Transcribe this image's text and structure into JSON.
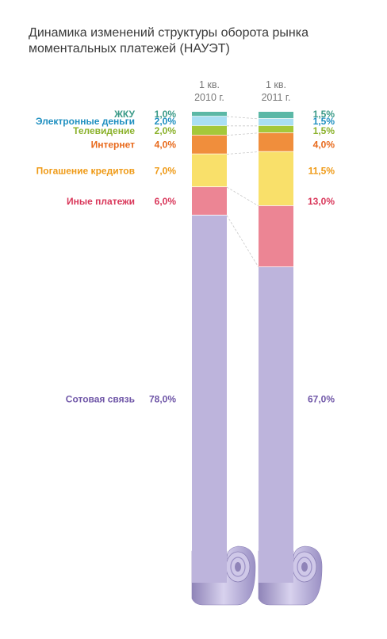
{
  "title": {
    "line1": "Динамика изменений структуры оборота рынка",
    "line2": "моментальных платежей (НАУЭТ)"
  },
  "chart_data": {
    "type": "bar",
    "stacked": true,
    "title": "Динамика изменений структуры оборота рынка моментальных платежей (НАУЭТ)",
    "categories": [
      {
        "line1": "1 кв.",
        "line2": "2010 г."
      },
      {
        "line1": "1 кв.",
        "line2": "2011 г."
      }
    ],
    "series": [
      {
        "name": "ЖКУ",
        "color": "#5bb8a6",
        "label_color": "#3a9a87",
        "values": [
          1.0,
          1.5
        ],
        "labels": [
          "1,0%",
          "1,5%"
        ]
      },
      {
        "name": "Электронные деньги",
        "color": "#a9dff3",
        "label_color": "#1e8fc0",
        "values": [
          2.0,
          1.5
        ],
        "labels": [
          "2,0%",
          "1,5%"
        ]
      },
      {
        "name": "Телевидение",
        "color": "#a4c83a",
        "label_color": "#8ab12a",
        "values": [
          2.0,
          1.5
        ],
        "labels": [
          "2,0%",
          "1,5%"
        ]
      },
      {
        "name": "Интернет",
        "color": "#f08e3c",
        "label_color": "#e86a1c",
        "values": [
          4.0,
          4.0
        ],
        "labels": [
          "4,0%",
          "4,0%"
        ]
      },
      {
        "name": "Погашение кредитов",
        "color": "#f9e06a",
        "label_color": "#ef9a16",
        "values": [
          7.0,
          11.5
        ],
        "labels": [
          "7,0%",
          "11,5%"
        ]
      },
      {
        "name": "Иные платежи",
        "color": "#ec8594",
        "label_color": "#d9375a",
        "values": [
          6.0,
          13.0
        ],
        "labels": [
          "6,0%",
          "13,0%"
        ]
      },
      {
        "name": "Сотовая связь",
        "color": "#bdb4dc",
        "label_color": "#7057a8",
        "values": [
          78.0,
          67.0
        ],
        "labels": [
          "78,0%",
          "67,0%"
        ]
      }
    ]
  }
}
